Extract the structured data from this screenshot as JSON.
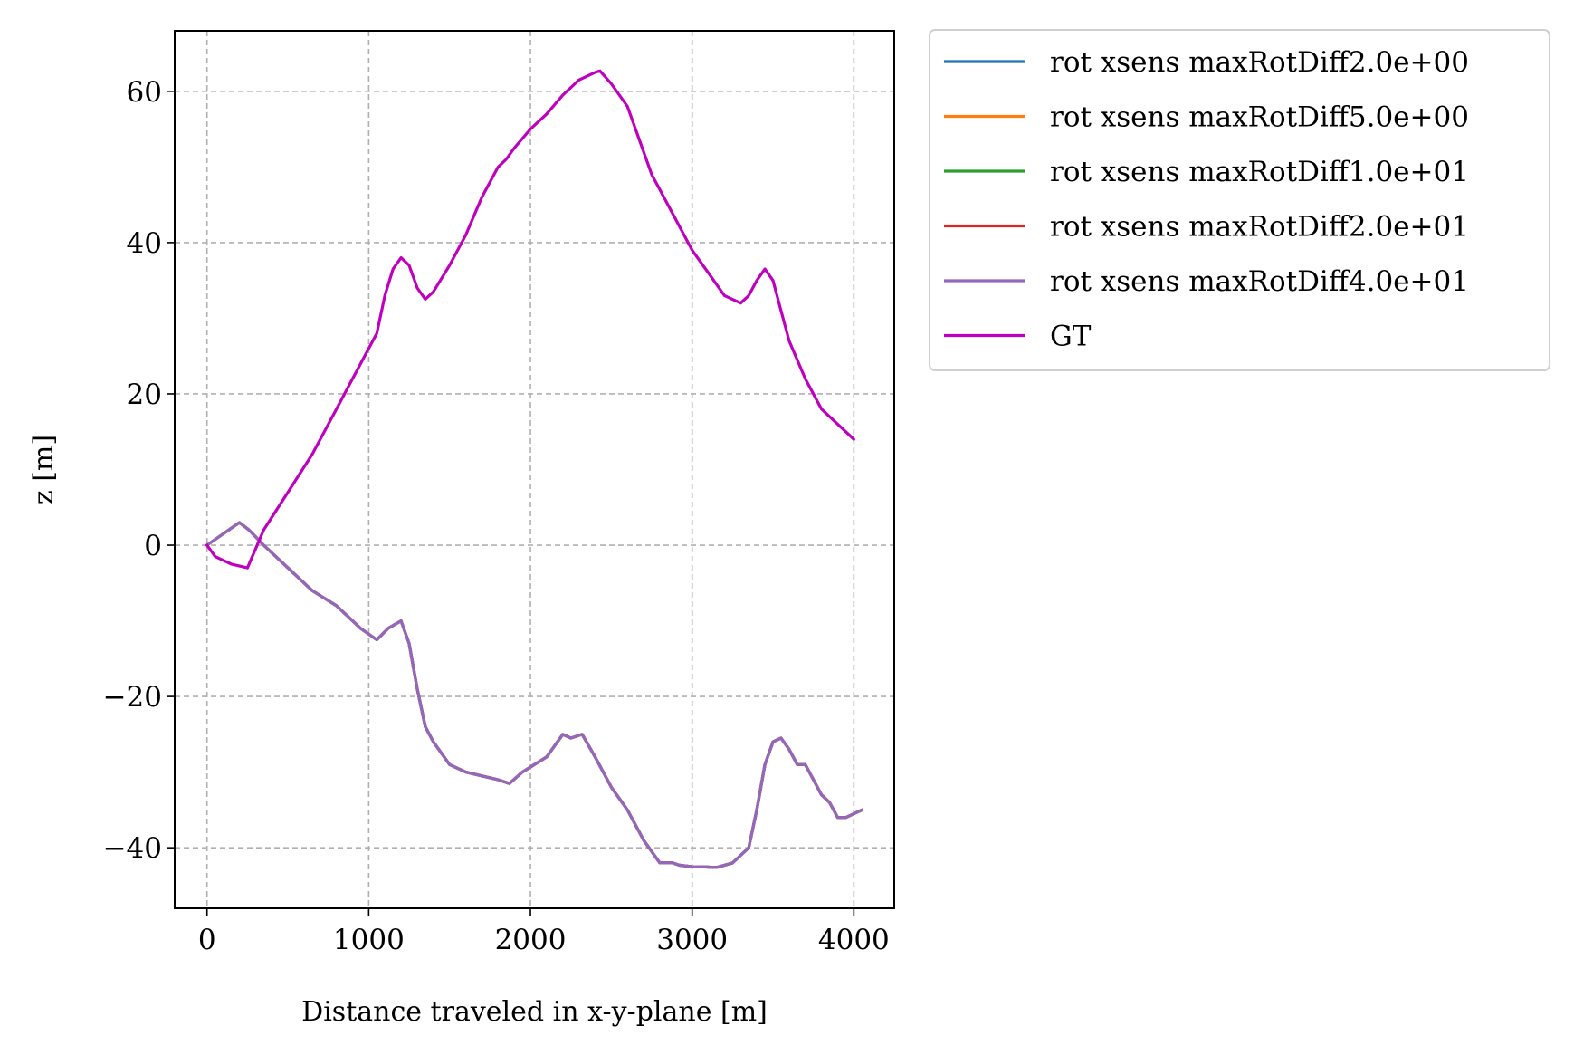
{
  "chart_data": {
    "type": "line",
    "title": "",
    "xlabel": "Distance traveled in x-y-plane [m]",
    "ylabel": "z [m]",
    "xlim": [
      -200,
      4250
    ],
    "ylim": [
      -48,
      68
    ],
    "xticks": [
      0,
      1000,
      2000,
      3000,
      4000
    ],
    "xtick_labels": [
      "0",
      "1000",
      "2000",
      "3000",
      "4000"
    ],
    "yticks": [
      -40,
      -20,
      0,
      20,
      40,
      60
    ],
    "ytick_labels": [
      "−40",
      "−20",
      "0",
      "20",
      "40",
      "60"
    ],
    "grid": true,
    "legend_position": "outside-upper-right",
    "series": [
      {
        "name": "rot xsens maxRotDiff2.0e+00",
        "color": "#1f77b4",
        "x": [
          0,
          100,
          200,
          260,
          350,
          500,
          650,
          800,
          950,
          1050,
          1120,
          1200,
          1250,
          1300,
          1350,
          1400,
          1500,
          1600,
          1700,
          1800,
          1870,
          1950,
          2100,
          2200,
          2250,
          2320,
          2400,
          2500,
          2600,
          2700,
          2800,
          2860,
          2880,
          2920,
          3000,
          3050,
          3150,
          3250,
          3300,
          3350,
          3400,
          3450,
          3500,
          3550,
          3600,
          3650,
          3700,
          3750,
          3800,
          3850,
          3900,
          3950,
          4000,
          4050
        ],
        "y": [
          0,
          1.5,
          3,
          2,
          0,
          -3,
          -6,
          -8,
          -11,
          -12.5,
          -11,
          -10,
          -13,
          -19,
          -24,
          -26,
          -29,
          -30,
          -30.5,
          -31,
          -31.5,
          -30,
          -28,
          -25,
          -25.5,
          -25,
          -28,
          -32,
          -35,
          -39,
          -42,
          -42,
          -42,
          -42.3,
          -42.5,
          -42.5,
          -42.6,
          -42,
          -41,
          -40,
          -35,
          -29,
          -26,
          -25.5,
          -27,
          -29,
          -29,
          -31,
          -33,
          -34,
          -36,
          -36,
          -35.5,
          -35
        ]
      },
      {
        "name": "rot xsens maxRotDiff5.0e+00",
        "color": "#ff7f0e",
        "x": [
          0,
          100,
          200,
          260,
          350,
          500,
          650,
          800,
          950,
          1050,
          1120,
          1200,
          1250,
          1300,
          1350,
          1400,
          1500,
          1600,
          1700,
          1800,
          1870,
          1950,
          2100,
          2200,
          2250,
          2320,
          2400,
          2500,
          2600,
          2700,
          2800,
          2860,
          2880,
          2920,
          3000,
          3050,
          3150,
          3250,
          3300,
          3350,
          3400,
          3450,
          3500,
          3550,
          3600,
          3650,
          3700,
          3750,
          3800,
          3850,
          3900,
          3950,
          4000,
          4050
        ],
        "y": [
          0,
          1.5,
          3,
          2,
          0,
          -3,
          -6,
          -8,
          -11,
          -12.5,
          -11,
          -10,
          -13,
          -19,
          -24,
          -26,
          -29,
          -30,
          -30.5,
          -31,
          -31.5,
          -30,
          -28,
          -25,
          -25.5,
          -25,
          -28,
          -32,
          -35,
          -39,
          -42,
          -42,
          -42,
          -42.3,
          -42.5,
          -42.5,
          -42.6,
          -42,
          -41,
          -40,
          -35,
          -29,
          -26,
          -25.5,
          -27,
          -29,
          -29,
          -31,
          -33,
          -34,
          -36,
          -36,
          -35.5,
          -35
        ]
      },
      {
        "name": "rot xsens maxRotDiff1.0e+01",
        "color": "#2ca02c",
        "x": [
          0,
          100,
          200,
          260,
          350,
          500,
          650,
          800,
          950,
          1050,
          1120,
          1200,
          1250,
          1300,
          1350,
          1400,
          1500,
          1600,
          1700,
          1800,
          1870,
          1950,
          2100,
          2200,
          2250,
          2320,
          2400,
          2500,
          2600,
          2700,
          2800,
          2860,
          2880,
          2920,
          3000,
          3050,
          3150,
          3250,
          3300,
          3350,
          3400,
          3450,
          3500,
          3550,
          3600,
          3650,
          3700,
          3750,
          3800,
          3850,
          3900,
          3950,
          4000,
          4050
        ],
        "y": [
          0,
          1.5,
          3,
          2,
          0,
          -3,
          -6,
          -8,
          -11,
          -12.5,
          -11,
          -10,
          -13,
          -19,
          -24,
          -26,
          -29,
          -30,
          -30.5,
          -31,
          -31.5,
          -30,
          -28,
          -25,
          -25.5,
          -25,
          -28,
          -32,
          -35,
          -39,
          -42,
          -42,
          -42,
          -42.3,
          -42.5,
          -42.5,
          -42.6,
          -42,
          -41,
          -40,
          -35,
          -29,
          -26,
          -25.5,
          -27,
          -29,
          -29,
          -31,
          -33,
          -34,
          -36,
          -36,
          -35.5,
          -35
        ]
      },
      {
        "name": "rot xsens maxRotDiff2.0e+01",
        "color": "#d62728",
        "x": [
          0,
          100,
          200,
          260,
          350,
          500,
          650,
          800,
          950,
          1050,
          1120,
          1200,
          1250,
          1300,
          1350,
          1400,
          1500,
          1600,
          1700,
          1800,
          1870,
          1950,
          2100,
          2200,
          2250,
          2320,
          2400,
          2500,
          2600,
          2700,
          2800,
          2860,
          2880,
          2920,
          3000,
          3050,
          3150,
          3250,
          3300,
          3350,
          3400,
          3450,
          3500,
          3550,
          3600,
          3650,
          3700,
          3750,
          3800,
          3850,
          3900,
          3950,
          4000,
          4050
        ],
        "y": [
          0,
          1.5,
          3,
          2,
          0,
          -3,
          -6,
          -8,
          -11,
          -12.5,
          -11,
          -10,
          -13,
          -19,
          -24,
          -26,
          -29,
          -30,
          -30.5,
          -31,
          -31.5,
          -30,
          -28,
          -25,
          -25.5,
          -25,
          -28,
          -32,
          -35,
          -39,
          -42,
          -42,
          -42,
          -42.3,
          -42.5,
          -42.5,
          -42.6,
          -42,
          -41,
          -40,
          -35,
          -29,
          -26,
          -25.5,
          -27,
          -29,
          -29,
          -31,
          -33,
          -34,
          -36,
          -36,
          -35.5,
          -35
        ]
      },
      {
        "name": "rot xsens maxRotDiff4.0e+01",
        "color": "#9467bd",
        "x": [
          0,
          100,
          200,
          260,
          350,
          500,
          650,
          800,
          950,
          1050,
          1120,
          1200,
          1250,
          1300,
          1350,
          1400,
          1500,
          1600,
          1700,
          1800,
          1870,
          1950,
          2100,
          2200,
          2250,
          2320,
          2400,
          2500,
          2600,
          2700,
          2800,
          2860,
          2880,
          2920,
          3000,
          3050,
          3150,
          3250,
          3300,
          3350,
          3400,
          3450,
          3500,
          3550,
          3600,
          3650,
          3700,
          3750,
          3800,
          3850,
          3900,
          3950,
          4000,
          4050
        ],
        "y": [
          0,
          1.5,
          3,
          2,
          0,
          -3,
          -6,
          -8,
          -11,
          -12.5,
          -11,
          -10,
          -13,
          -19,
          -24,
          -26,
          -29,
          -30,
          -30.5,
          -31,
          -31.5,
          -30,
          -28,
          -25,
          -25.5,
          -25,
          -28,
          -32,
          -35,
          -39,
          -42,
          -42,
          -42,
          -42.3,
          -42.5,
          -42.5,
          -42.6,
          -42,
          -41,
          -40,
          -35,
          -29,
          -26,
          -25.5,
          -27,
          -29,
          -29,
          -31,
          -33,
          -34,
          -36,
          -36,
          -35.5,
          -35
        ]
      },
      {
        "name": "GT",
        "color": "#bf00bf",
        "x": [
          0,
          50,
          150,
          250,
          350,
          500,
          650,
          800,
          950,
          1050,
          1100,
          1150,
          1200,
          1250,
          1300,
          1350,
          1400,
          1500,
          1600,
          1700,
          1800,
          1850,
          1900,
          2000,
          2100,
          2200,
          2300,
          2400,
          2430,
          2500,
          2600,
          2700,
          2750,
          2800,
          2850,
          2900,
          3000,
          3100,
          3200,
          3300,
          3350,
          3400,
          3450,
          3500,
          3550,
          3600,
          3700,
          3800,
          3900,
          4000
        ],
        "y": [
          0,
          -1.5,
          -2.5,
          -3,
          2,
          7,
          12,
          18,
          24,
          28,
          33,
          36.5,
          38,
          37,
          34,
          32.5,
          33.5,
          37,
          41,
          46,
          50,
          51,
          52.5,
          55,
          57,
          59.5,
          61.5,
          62.5,
          62.7,
          61,
          58,
          52,
          49,
          47,
          45,
          43,
          39,
          36,
          33,
          32,
          33,
          35,
          36.5,
          35,
          31,
          27,
          22,
          18,
          16,
          14
        ]
      }
    ]
  }
}
